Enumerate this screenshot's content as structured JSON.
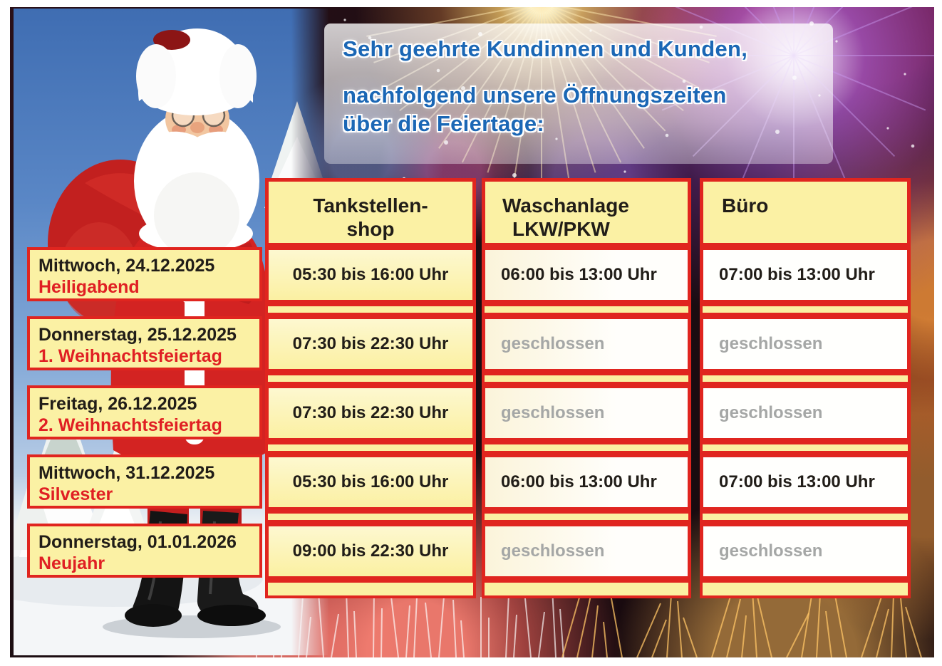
{
  "title": {
    "line1": "Sehr geehrte Kundinnen und Kunden,",
    "line2": "nachfolgend unsere Öffnungszeiten",
    "line3": "über die Feiertage:"
  },
  "table": {
    "header": {
      "shop": {
        "line1": "Tankstellen-",
        "line2": "shop"
      },
      "wash": {
        "line1": "Waschanlage",
        "line2": "LKW/PKW"
      },
      "office": {
        "line1": "Büro",
        "line2": ""
      }
    },
    "closed_label": "geschlossen",
    "rows": [
      {
        "date": "Mittwoch, 24.12.2025",
        "holiday": "Heiligabend",
        "shop": "05:30 bis 16:00 Uhr",
        "wash": "06:00 bis 13:00 Uhr",
        "office": "07:00 bis 13:00 Uhr"
      },
      {
        "date": "Donnerstag, 25.12.2025",
        "holiday": "1. Weihnachtsfeiertag",
        "shop": "07:30 bis 22:30 Uhr",
        "wash": "geschlossen",
        "office": "geschlossen"
      },
      {
        "date": "Freitag, 26.12.2025",
        "holiday": "2. Weihnachtsfeiertag",
        "shop": "07:30 bis 22:30 Uhr",
        "wash": "geschlossen",
        "office": "geschlossen"
      },
      {
        "date": "Mittwoch, 31.12.2025",
        "holiday": "Silvester",
        "shop": "05:30 bis 16:00 Uhr",
        "wash": "06:00 bis 13:00 Uhr",
        "office": "07:00 bis 13:00 Uhr"
      },
      {
        "date": "Donnerstag, 01.01.2026",
        "holiday": "Neujahr",
        "shop": "09:00 bis 22:30 Uhr",
        "wash": "geschlossen",
        "office": "geschlossen"
      }
    ]
  },
  "colors": {
    "border_red": "#e0251f",
    "cell_yellow": "#fbf1a4",
    "title_blue": "#1b67b5",
    "holiday_red": "#e01f23",
    "closed_gray": "#a5a7a6"
  },
  "illustration": {
    "left_image": "santa-claus-with-red-gift-sack-in-snowy-winter-landscape",
    "background_image": "new-year-fireworks"
  }
}
